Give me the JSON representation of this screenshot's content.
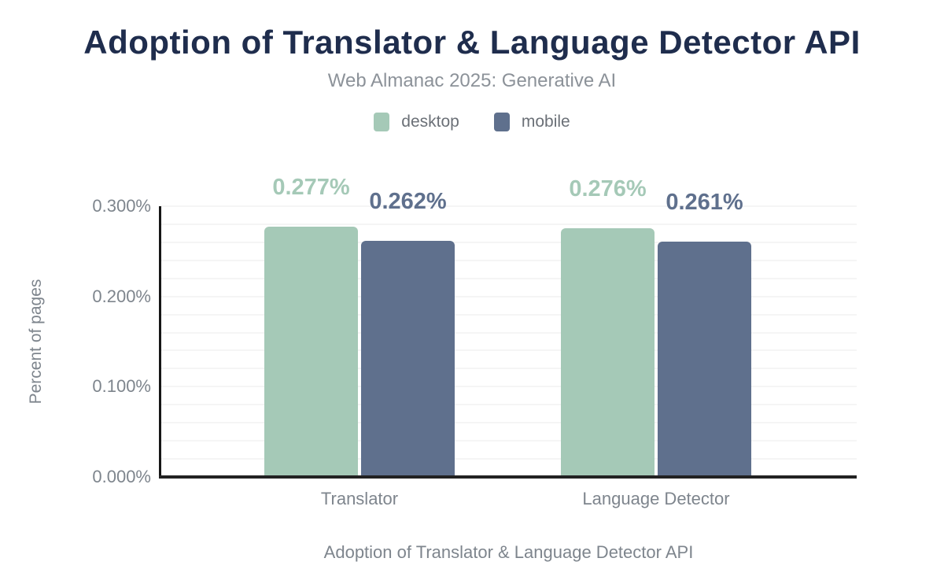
{
  "header": {
    "title": "Adoption of Translator & Language Detector API",
    "subtitle": "Web Almanac 2025: Generative AI"
  },
  "legend": {
    "items": [
      {
        "label": "desktop",
        "color": "#a5c9b7"
      },
      {
        "label": "mobile",
        "color": "#5f708d"
      }
    ]
  },
  "chart_data": {
    "type": "bar",
    "title": "Adoption of Translator & Language Detector API",
    "subtitle": "Web Almanac 2025: Generative AI",
    "categories": [
      "Translator",
      "Language Detector"
    ],
    "series": [
      {
        "name": "desktop",
        "color": "#a5c9b7",
        "values": [
          0.277,
          0.276
        ]
      },
      {
        "name": "mobile",
        "color": "#5f708d",
        "values": [
          0.262,
          0.261
        ]
      }
    ],
    "value_labels": [
      [
        "0.277%",
        "0.276%"
      ],
      [
        "0.262%",
        "0.261%"
      ]
    ],
    "xlabel": "Adoption of Translator & Language Detector API",
    "ylabel": "Percent of pages",
    "ylim": [
      0,
      0.3
    ],
    "tick_interval": 0.1,
    "tick_labels": [
      "0.000%",
      "0.100%",
      "0.200%",
      "0.300%"
    ],
    "minor_grid_interval": 0.02,
    "unit": "%",
    "grid": true,
    "legend_position": "top"
  }
}
